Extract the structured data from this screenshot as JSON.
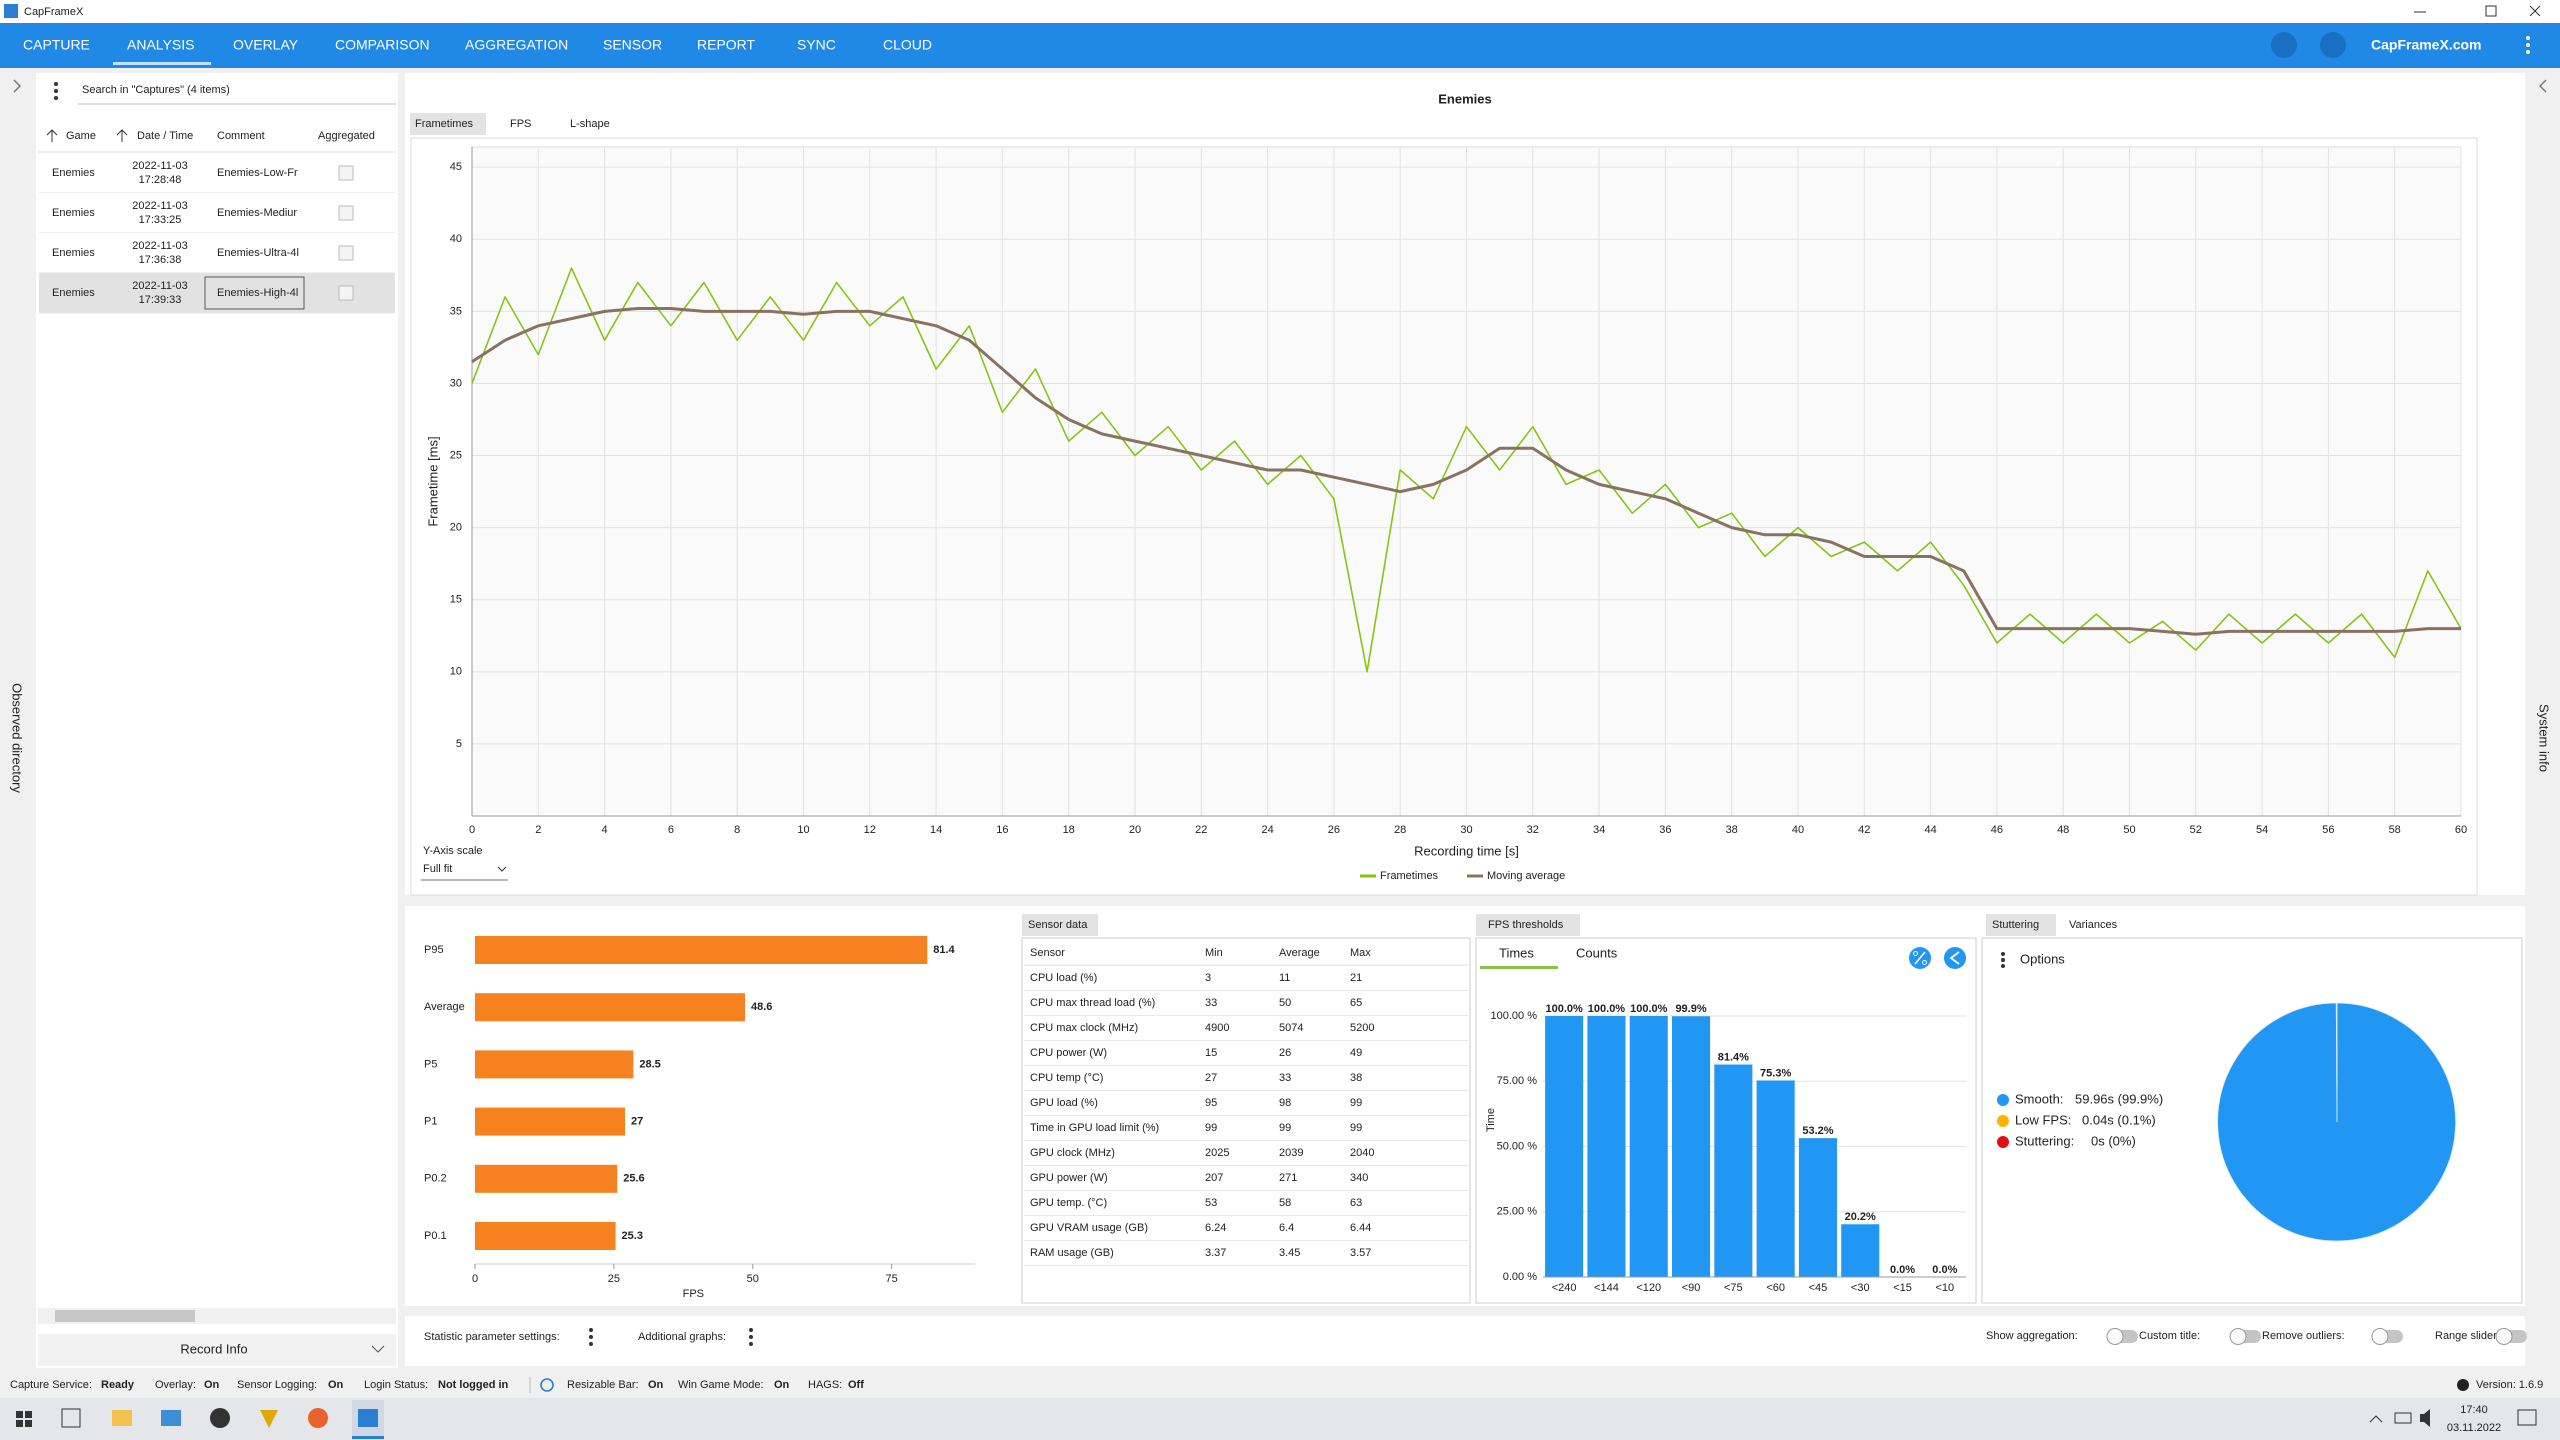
{
  "window": {
    "title": "CapFrameX"
  },
  "menu": {
    "items": [
      "CAPTURE",
      "ANALYSIS",
      "OVERLAY",
      "COMPARISON",
      "AGGREGATION",
      "SENSOR",
      "REPORT",
      "SYNC",
      "CLOUD"
    ],
    "active": 1,
    "link": "CapFrameX.com"
  },
  "sidebars": {
    "left": "Observed directory",
    "right": "System info"
  },
  "captures": {
    "search": "Search in \"Captures\" (4 items)",
    "columns": [
      "Game",
      "Date / Time",
      "Comment",
      "Aggregated"
    ],
    "rows": [
      {
        "game": "Enemies",
        "date": "2022-11-03",
        "time": "17:28:48",
        "comment": "Enemies-Low-Fr"
      },
      {
        "game": "Enemies",
        "date": "2022-11-03",
        "time": "17:33:25",
        "comment": "Enemies-Mediur"
      },
      {
        "game": "Enemies",
        "date": "2022-11-03",
        "time": "17:36:38",
        "comment": "Enemies-Ultra-4l"
      },
      {
        "game": "Enemies",
        "date": "2022-11-03",
        "time": "17:39:33",
        "comment": "Enemies-High-4l"
      }
    ],
    "selected": 3,
    "footer": "Record Info"
  },
  "analysis": {
    "tabs": [
      "Frametimes",
      "FPS",
      "L-shape"
    ],
    "active_tab": 0,
    "y_axis_scale": {
      "label": "Y-Axis scale",
      "value": "Full fit"
    }
  },
  "chart_data": [
    {
      "type": "line",
      "title": "Enemies",
      "x": [
        0,
        1,
        2,
        3,
        4,
        5,
        6,
        7,
        8,
        9,
        10,
        11,
        12,
        13,
        14,
        15,
        16,
        17,
        18,
        19,
        20,
        21,
        22,
        23,
        24,
        25,
        26,
        27,
        28,
        29,
        30,
        31,
        32,
        33,
        34,
        35,
        36,
        37,
        38,
        39,
        40,
        41,
        42,
        43,
        44,
        45,
        46,
        47,
        48,
        49,
        50,
        51,
        52,
        53,
        54,
        55,
        56,
        57,
        58,
        59,
        60
      ],
      "series": [
        {
          "name": "Frametimes",
          "color": "#86c611",
          "values": [
            30,
            36,
            32,
            38,
            33,
            37,
            34,
            37,
            33,
            36,
            33,
            37,
            34,
            36,
            31,
            34,
            28,
            31,
            26,
            28,
            25,
            27,
            24,
            26,
            23,
            25,
            22,
            10,
            24,
            22,
            27,
            24,
            27,
            23,
            24,
            21,
            23,
            20,
            21,
            18,
            20,
            18,
            19,
            17,
            19,
            16,
            12,
            14,
            12,
            14,
            12,
            13.5,
            11.5,
            14,
            12,
            14,
            12,
            14,
            11,
            17,
            13
          ]
        },
        {
          "name": "Moving average",
          "color": "#8a7262",
          "values": [
            31.5,
            33,
            34,
            34.5,
            35,
            35.2,
            35.2,
            35,
            35,
            35,
            34.8,
            35,
            35,
            34.5,
            34,
            33,
            31,
            29,
            27.5,
            26.5,
            26,
            25.5,
            25,
            24.5,
            24,
            24,
            23.5,
            23,
            22.5,
            23,
            24,
            25.5,
            25.5,
            24,
            23,
            22.5,
            22,
            21,
            20,
            19.5,
            19.5,
            19,
            18,
            18,
            18,
            17,
            13,
            13,
            13,
            13,
            13,
            12.8,
            12.6,
            12.8,
            12.8,
            12.8,
            12.8,
            12.8,
            12.8,
            13,
            13
          ]
        }
      ],
      "xlim": [
        0,
        60
      ],
      "ylim": [
        0,
        46.4
      ],
      "xticks": [
        0,
        2,
        4,
        6,
        8,
        10,
        12,
        14,
        16,
        18,
        20,
        22,
        24,
        26,
        28,
        30,
        32,
        34,
        36,
        38,
        40,
        42,
        44,
        46,
        48,
        50,
        52,
        54,
        56,
        58,
        60
      ],
      "yticks": [
        5,
        10,
        15,
        20,
        25,
        30,
        35,
        40,
        45
      ],
      "xlabel": "Recording time [s]",
      "ylabel": "Frametime [ms]",
      "grid": true,
      "legend": "bottom"
    },
    {
      "type": "hbar",
      "categories": [
        "P95",
        "Average",
        "P5",
        "P1",
        "P0.2",
        "P0.1"
      ],
      "values": [
        81.4,
        48.6,
        28.5,
        27,
        25.6,
        25.3
      ],
      "color": "#f5821f",
      "xlim": [
        0,
        90
      ],
      "xticks": [
        0,
        25,
        50,
        75
      ],
      "xlabel": "FPS"
    },
    {
      "type": "bar",
      "categories": [
        "<240",
        "<144",
        "<120",
        "<90",
        "<75",
        "<60",
        "<45",
        "<30",
        "<15",
        "<10"
      ],
      "values": [
        100,
        100,
        100,
        99.9,
        81.4,
        75.3,
        53.2,
        20.2,
        0,
        0
      ],
      "value_labels": [
        "100.0%",
        "100.0%",
        "100.0%",
        "99.9%",
        "81.4%",
        "75.3%",
        "53.2%",
        "20.2%",
        "0.0%",
        "0.0%"
      ],
      "color": "#2196f3",
      "ylim": [
        0,
        100
      ],
      "yticks": [
        {
          "value": 0,
          "label": "0.00 %"
        },
        {
          "value": 25,
          "label": "25.00 %"
        },
        {
          "value": 50,
          "label": "50.00 %"
        },
        {
          "value": 75,
          "label": "75.00 %"
        },
        {
          "value": 100,
          "label": "100.00 %"
        }
      ],
      "ylabel": "Time",
      "grid": true
    },
    {
      "type": "pie",
      "categories": [
        "Smooth:",
        "Low FPS:",
        "Stuttering:"
      ],
      "values": [
        99.9,
        0.1,
        0
      ],
      "value_labels": [
        "59.96s (99.9%)",
        "0.04s (0.1%)",
        "0s (0%)"
      ],
      "colors": [
        "#2196f3",
        "#ffb300",
        "#e01010"
      ]
    }
  ],
  "sensor": {
    "tab": "Sensor data",
    "columns": [
      "Sensor",
      "Min",
      "Average",
      "Max"
    ],
    "rows": [
      [
        "CPU load (%)",
        3,
        11,
        21
      ],
      [
        "CPU max thread load (%)",
        33,
        50,
        65
      ],
      [
        "CPU max clock (MHz)",
        4900,
        5074,
        5200
      ],
      [
        "CPU power (W)",
        15,
        26,
        49
      ],
      [
        "CPU temp (°C)",
        27,
        33,
        38
      ],
      [
        "GPU load (%)",
        95,
        98,
        99
      ],
      [
        "Time in GPU load limit (%)",
        99,
        99,
        99
      ],
      [
        "GPU clock (MHz)",
        2025,
        2039,
        2040
      ],
      [
        "GPU power (W)",
        207,
        271,
        340
      ],
      [
        "GPU temp. (°C)",
        53,
        58,
        63
      ],
      [
        "GPU VRAM usage (GB)",
        6.24,
        6.4,
        6.44
      ],
      [
        "RAM usage (GB)",
        3.37,
        3.45,
        3.57
      ]
    ]
  },
  "thresholds": {
    "tab": "FPS thresholds",
    "subtabs": [
      "Times",
      "Counts"
    ]
  },
  "stuttering": {
    "tabs": [
      "Stuttering",
      "Variances"
    ],
    "options": "Options"
  },
  "settings": {
    "left": [
      "Statistic parameter settings:",
      "Additional graphs:"
    ],
    "right": [
      "Show aggregation:",
      "Custom title:",
      "Remove outliers:",
      "Range slider:"
    ]
  },
  "status": {
    "items": [
      {
        "label": "Capture Service:",
        "value": "Ready",
        "state": "ok"
      },
      {
        "label": "Overlay:",
        "value": "On",
        "state": "ok"
      },
      {
        "label": "Sensor Logging:",
        "value": "On",
        "state": "ok"
      },
      {
        "label": "Login Status:",
        "value": "Not logged in",
        "state": "bad"
      },
      {
        "label": "Resizable Bar:",
        "value": "On",
        "state": "ok"
      },
      {
        "label": "Win Game Mode:",
        "value": "On",
        "state": "ok"
      },
      {
        "label": "HAGS:",
        "value": "Off",
        "state": "bad"
      }
    ],
    "version": "Version: 1.6.9"
  },
  "taskbar": {
    "time": "17:40",
    "date": "03.11.2022"
  }
}
